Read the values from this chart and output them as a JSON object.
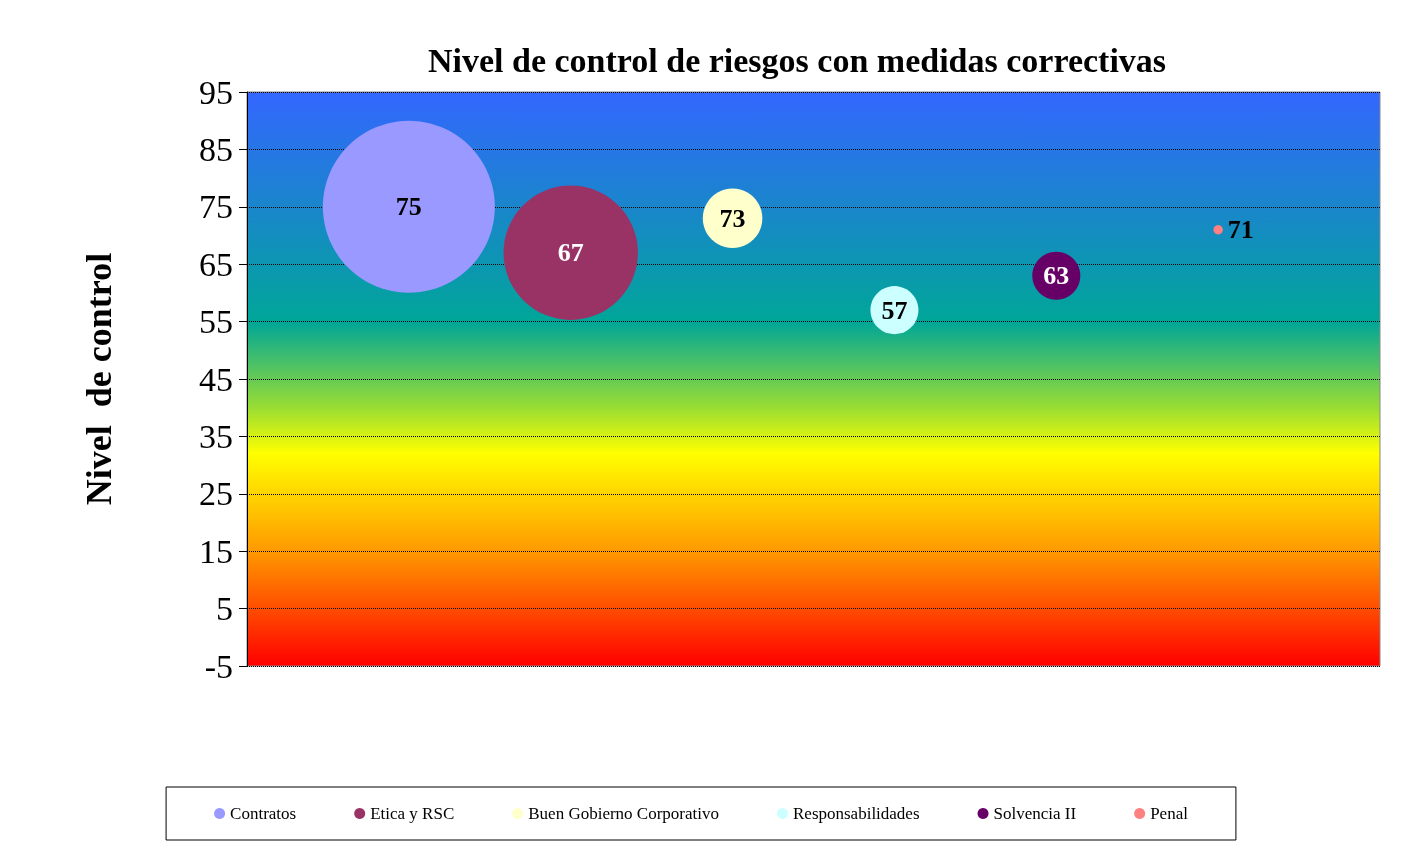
{
  "chart_data": {
    "type": "bubble",
    "title": "Nivel de control de riesgos con medidas correctivas",
    "ylabel": "Nivel  de control",
    "categories": [
      null,
      null,
      null,
      null,
      null,
      null
    ],
    "series": [
      {
        "name": "Contratos",
        "color": "#9999ff",
        "values": [
          75,
          null,
          null,
          null,
          null,
          null
        ],
        "sizes": [
          1,
          null,
          null,
          null,
          null,
          null
        ]
      },
      {
        "name": "Etica y RSC",
        "color": "#993366",
        "values": [
          null,
          67,
          null,
          null,
          null,
          null
        ],
        "sizes": [
          null,
          0.61,
          null,
          null,
          null,
          null
        ]
      },
      {
        "name": "Buen Gobierno Corporativo",
        "color": "#ffffcc",
        "values": [
          null,
          null,
          73,
          null,
          null,
          null
        ],
        "sizes": [
          null,
          null,
          0.12,
          null,
          null,
          null
        ]
      },
      {
        "name": "Responsabilidades",
        "color": "#ccffff",
        "values": [
          null,
          null,
          null,
          57,
          null,
          null
        ],
        "sizes": [
          null,
          null,
          null,
          0.078,
          null,
          null
        ]
      },
      {
        "name": "Solvencia II",
        "color": "#660066",
        "values": [
          null,
          null,
          null,
          null,
          63,
          null
        ],
        "sizes": [
          null,
          null,
          null,
          null,
          0.078,
          null
        ]
      },
      {
        "name": "Penal",
        "color": "#ff8080",
        "values": [
          null,
          null,
          null,
          null,
          null,
          71
        ],
        "sizes": [
          null,
          null,
          null,
          null,
          null,
          0.003
        ]
      }
    ],
    "ylim": [
      -5,
      95
    ],
    "yticks": [
      -5,
      5,
      15,
      25,
      35,
      45,
      55,
      65,
      75,
      85,
      95
    ],
    "grid": "y",
    "legend": "bottom",
    "data_labels": true
  }
}
